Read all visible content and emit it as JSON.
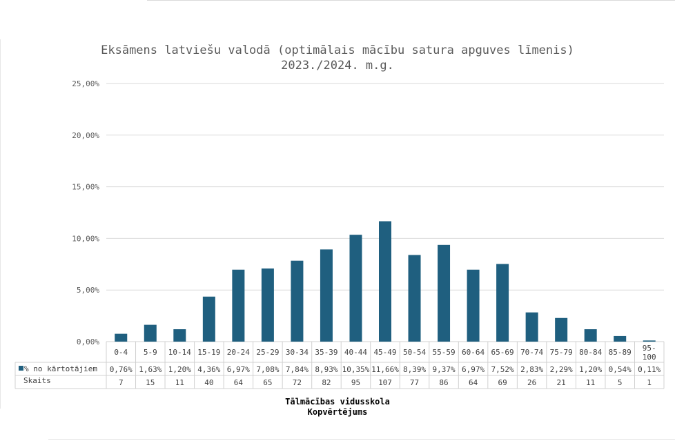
{
  "chart_data": {
    "type": "bar",
    "title": "Eksāmens latviešu valodā (optimālais mācību satura apguves līmenis)",
    "subtitle": "2023./2024. m.g.",
    "xlabel": "Tālmācības vidusskola",
    "xlabel2": "Kopvērtējums",
    "ylabel": "",
    "ylim": [
      0,
      25
    ],
    "yticks": [
      "0,00%",
      "5,00%",
      "10,00%",
      "15,00%",
      "20,00%",
      "25,00%"
    ],
    "grid": true,
    "categories": [
      "0-4",
      "5-9",
      "10-14",
      "15-19",
      "20-24",
      "25-29",
      "30-34",
      "35-39",
      "40-44",
      "45-49",
      "50-54",
      "55-59",
      "60-64",
      "65-69",
      "70-74",
      "75-79",
      "80-84",
      "85-89",
      "95-100"
    ],
    "series": [
      {
        "name": "% no kārtotājiem",
        "color": "#1f5f7f",
        "values": [
          0.76,
          1.63,
          1.2,
          4.36,
          6.97,
          7.08,
          7.84,
          8.93,
          10.35,
          11.66,
          8.39,
          9.37,
          6.97,
          7.52,
          2.83,
          2.29,
          1.2,
          0.54,
          0.11
        ],
        "labels": [
          "0,76%",
          "1,63%",
          "1,20%",
          "4,36%",
          "6,97%",
          "7,08%",
          "7,84%",
          "8,93%",
          "10,35%",
          "11,66%",
          "8,39%",
          "9,37%",
          "6,97%",
          "7,52%",
          "2,83%",
          "2,29%",
          "1,20%",
          "0,54%",
          "0,11%"
        ]
      }
    ],
    "table_rows": [
      {
        "name": "Skaits",
        "values": [
          "7",
          "15",
          "11",
          "40",
          "64",
          "65",
          "72",
          "82",
          "95",
          "107",
          "77",
          "86",
          "64",
          "69",
          "26",
          "21",
          "11",
          "5",
          "1"
        ]
      }
    ]
  }
}
